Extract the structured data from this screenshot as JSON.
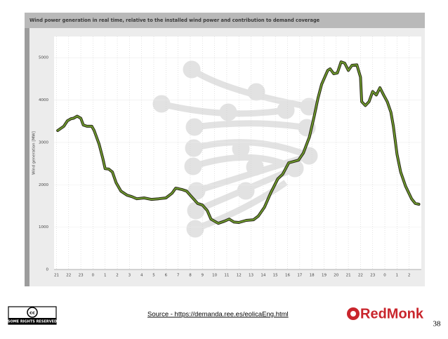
{
  "chart_data": {
    "type": "line",
    "title": "Wind power generation in real time, relative to the installed wind power and contribution to demand coverage",
    "y_label": "Wind generation [MW]",
    "x": [
      0.1,
      0.6,
      0.9,
      1.2,
      1.4,
      1.7,
      2.0,
      2.2,
      2.5,
      2.9,
      3.1,
      3.5,
      3.8,
      4.0,
      4.3,
      4.6,
      4.9,
      5.3,
      5.8,
      6.2,
      6.6,
      7.2,
      7.8,
      8.4,
      9.0,
      9.5,
      9.8,
      10.3,
      10.7,
      11.1,
      11.6,
      12.0,
      12.4,
      12.7,
      13.3,
      13.8,
      14.2,
      14.6,
      15.0,
      15.6,
      16.2,
      16.6,
      17.1,
      17.6,
      18.2,
      18.6,
      19.1,
      19.5,
      19.9,
      20.3,
      20.8,
      21.2,
      21.5,
      21.8,
      22.3,
      22.5,
      22.8,
      23.1,
      23.4,
      23.7,
      24.0,
      24.3,
      24.7,
      25.0,
      25.1,
      25.4,
      25.7,
      26.0,
      26.3,
      26.6,
      26.9,
      27.2,
      27.5,
      27.7,
      28.0,
      28.3,
      28.7,
      29.2,
      29.5,
      29.8
    ],
    "series": [
      {
        "color": "#6e9a2c",
        "values": [
          3280,
          3380,
          3510,
          3560,
          3570,
          3620,
          3570,
          3410,
          3380,
          3380,
          3280,
          2960,
          2630,
          2380,
          2370,
          2300,
          2050,
          1850,
          1755,
          1720,
          1670,
          1690,
          1655,
          1670,
          1690,
          1800,
          1920,
          1890,
          1850,
          1720,
          1560,
          1520,
          1390,
          1190,
          1090,
          1140,
          1190,
          1120,
          1110,
          1160,
          1175,
          1260,
          1470,
          1800,
          2140,
          2250,
          2520,
          2550,
          2580,
          2750,
          3130,
          3630,
          4040,
          4370,
          4700,
          4735,
          4620,
          4640,
          4900,
          4870,
          4700,
          4820,
          4830,
          4540,
          3960,
          3870,
          3960,
          4200,
          4120,
          4290,
          4120,
          3960,
          3710,
          3380,
          2720,
          2300,
          1970,
          1670,
          1560,
          1540
        ]
      }
    ],
    "xlim": [
      -0.2,
      30
    ],
    "xticks": [
      {
        "value": 0,
        "label": "21"
      },
      {
        "value": 1,
        "label": "22"
      },
      {
        "value": 2,
        "label": "23"
      },
      {
        "value": 3,
        "label": "0"
      },
      {
        "value": 4,
        "label": "1"
      },
      {
        "value": 5,
        "label": "2"
      },
      {
        "value": 6,
        "label": "3"
      },
      {
        "value": 7,
        "label": "4"
      },
      {
        "value": 8,
        "label": "5"
      },
      {
        "value": 9,
        "label": "6"
      },
      {
        "value": 10,
        "label": "7"
      },
      {
        "value": 11,
        "label": "8"
      },
      {
        "value": 12,
        "label": "9"
      },
      {
        "value": 13,
        "label": "10"
      },
      {
        "value": 14,
        "label": "11"
      },
      {
        "value": 15,
        "label": "12"
      },
      {
        "value": 16,
        "label": "13"
      },
      {
        "value": 17,
        "label": "14"
      },
      {
        "value": 18,
        "label": "15"
      },
      {
        "value": 19,
        "label": "16"
      },
      {
        "value": 20,
        "label": "17"
      },
      {
        "value": 21,
        "label": "18"
      },
      {
        "value": 22,
        "label": "19"
      },
      {
        "value": 23,
        "label": "20"
      },
      {
        "value": 24,
        "label": "21"
      },
      {
        "value": 25,
        "label": "22"
      },
      {
        "value": 26,
        "label": "23"
      },
      {
        "value": 27,
        "label": "0"
      },
      {
        "value": 28,
        "label": "1"
      },
      {
        "value": 29,
        "label": "2"
      }
    ],
    "ylim": [
      0,
      5400
    ],
    "yticks": [
      0,
      1000,
      2000,
      3000,
      4000,
      5000
    ],
    "grid": true
  },
  "slide": {
    "source": "Source - https://demanda.ree.es/eolicaEng.html",
    "page_number": "38",
    "license_badge": "cc",
    "license_text": "SOME RIGHTS RESERVED",
    "logo": "RedMonk"
  }
}
